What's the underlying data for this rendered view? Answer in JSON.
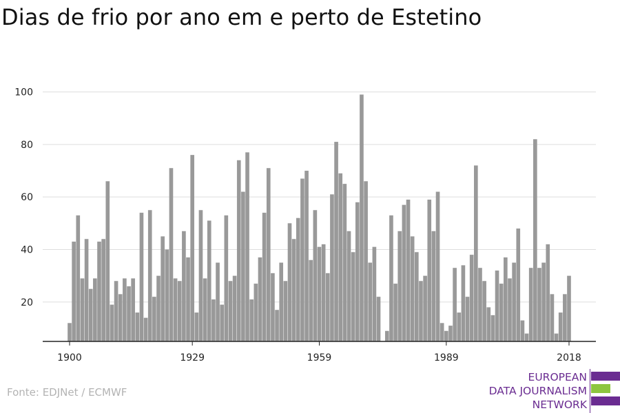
{
  "title": "Dias de frio por ano em e perto de Estetino",
  "source": "Fonte: EDJNet / ECMWF",
  "logo": {
    "lines": [
      "EUROPEAN",
      "DATA JOURNALISM",
      "NETWORK"
    ],
    "colors": {
      "purple": "#6a2c91",
      "green": "#8dc63f"
    }
  },
  "chart_data": {
    "type": "bar",
    "title": "Dias de frio por ano em e perto de Estetino",
    "xlabel": "",
    "ylabel": "",
    "x": [
      1900,
      1901,
      1902,
      1903,
      1904,
      1905,
      1906,
      1907,
      1908,
      1909,
      1910,
      1911,
      1912,
      1913,
      1914,
      1915,
      1916,
      1917,
      1918,
      1919,
      1920,
      1921,
      1922,
      1923,
      1924,
      1925,
      1926,
      1927,
      1928,
      1929,
      1930,
      1931,
      1932,
      1933,
      1934,
      1935,
      1936,
      1937,
      1938,
      1939,
      1940,
      1941,
      1942,
      1943,
      1944,
      1945,
      1946,
      1947,
      1948,
      1949,
      1950,
      1951,
      1952,
      1953,
      1954,
      1955,
      1956,
      1957,
      1958,
      1959,
      1960,
      1961,
      1962,
      1963,
      1964,
      1965,
      1966,
      1967,
      1968,
      1969,
      1970,
      1971,
      1972,
      1973,
      1974,
      1975,
      1976,
      1977,
      1978,
      1979,
      1980,
      1981,
      1982,
      1983,
      1984,
      1985,
      1986,
      1987,
      1988,
      1989,
      1990,
      1991,
      1992,
      1993,
      1994,
      1995,
      1996,
      1997,
      1998,
      1999,
      2000,
      2001,
      2002,
      2003,
      2004,
      2005,
      2006,
      2007,
      2008,
      2009,
      2010,
      2011,
      2012,
      2013,
      2014,
      2015,
      2016,
      2017,
      2018
    ],
    "values": [
      12,
      43,
      53,
      29,
      44,
      25,
      29,
      43,
      44,
      66,
      19,
      28,
      23,
      29,
      26,
      29,
      16,
      54,
      14,
      55,
      22,
      30,
      45,
      40,
      71,
      29,
      28,
      47,
      37,
      76,
      16,
      55,
      29,
      51,
      21,
      35,
      19,
      53,
      28,
      30,
      74,
      62,
      77,
      21,
      27,
      37,
      54,
      71,
      31,
      17,
      35,
      28,
      50,
      44,
      52,
      67,
      70,
      36,
      55,
      41,
      42,
      31,
      61,
      81,
      69,
      65,
      47,
      39,
      58,
      99,
      66,
      35,
      41,
      22,
      5,
      9,
      53,
      27,
      47,
      57,
      59,
      45,
      39,
      28,
      30,
      59,
      47,
      62,
      12,
      9,
      11,
      33,
      16,
      34,
      22,
      38,
      72,
      33,
      28,
      18,
      15,
      32,
      27,
      37,
      29,
      35,
      48,
      13,
      8,
      33,
      82,
      33,
      35,
      42,
      23,
      8,
      16,
      23,
      30
    ],
    "x_ticks": [
      1900,
      1929,
      1959,
      1989,
      2018
    ],
    "y_ticks": [
      20,
      40,
      60,
      80,
      100
    ],
    "ylim": [
      5,
      105
    ],
    "grid": true,
    "legend": "none",
    "bar_color": "#999999",
    "grid_color": "#dddddd",
    "axis_color": "#222222"
  }
}
